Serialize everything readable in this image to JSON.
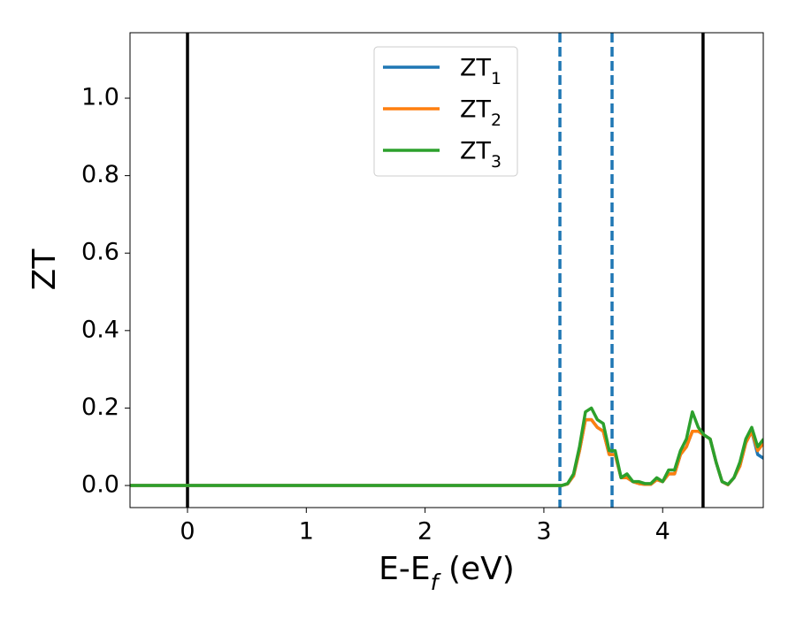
{
  "chart_data": {
    "type": "line",
    "xlabel": "E-E_f (eV)",
    "ylabel": "ZT",
    "x": [
      -0.48,
      3.0,
      3.1,
      3.15,
      3.2,
      3.25,
      3.3,
      3.35,
      3.4,
      3.45,
      3.5,
      3.55,
      3.6,
      3.65,
      3.7,
      3.75,
      3.8,
      3.85,
      3.9,
      3.95,
      4.0,
      4.05,
      4.1,
      4.15,
      4.2,
      4.25,
      4.3,
      4.35,
      4.4,
      4.45,
      4.5,
      4.55,
      4.6,
      4.65,
      4.7,
      4.75,
      4.8,
      4.85
    ],
    "series": [
      {
        "name": "ZT_1",
        "color": "#1f77b4",
        "values": [
          0,
          0,
          0,
          0,
          0.004,
          0.025,
          0.09,
          0.17,
          0.17,
          0.15,
          0.14,
          0.08,
          0.08,
          0.02,
          0.02,
          0.01,
          0.005,
          0.003,
          0.003,
          0.015,
          0.01,
          0.03,
          0.03,
          0.08,
          0.1,
          0.14,
          0.14,
          0.13,
          0.12,
          0.06,
          0.01,
          0.002,
          0.02,
          0.05,
          0.11,
          0.14,
          0.08,
          0.07
        ]
      },
      {
        "name": "ZT_2",
        "color": "#ff7f0e",
        "values": [
          0,
          0,
          0,
          0,
          0.004,
          0.025,
          0.09,
          0.17,
          0.17,
          0.15,
          0.14,
          0.08,
          0.08,
          0.02,
          0.02,
          0.01,
          0.005,
          0.003,
          0.003,
          0.015,
          0.01,
          0.03,
          0.03,
          0.08,
          0.1,
          0.14,
          0.14,
          0.13,
          0.12,
          0.06,
          0.01,
          0.002,
          0.02,
          0.05,
          0.11,
          0.14,
          0.09,
          0.11
        ]
      },
      {
        "name": "ZT_3",
        "color": "#2ca02c",
        "values": [
          0,
          0,
          0,
          0,
          0.005,
          0.03,
          0.1,
          0.19,
          0.2,
          0.17,
          0.16,
          0.09,
          0.09,
          0.02,
          0.03,
          0.01,
          0.01,
          0.005,
          0.005,
          0.02,
          0.01,
          0.04,
          0.04,
          0.09,
          0.12,
          0.19,
          0.15,
          0.13,
          0.12,
          0.06,
          0.01,
          0.003,
          0.02,
          0.06,
          0.12,
          0.15,
          0.1,
          0.12
        ]
      }
    ],
    "vlines": [
      {
        "x": 0,
        "color": "#000000",
        "style": "solid"
      },
      {
        "x": 4.34,
        "color": "#000000",
        "style": "solid"
      },
      {
        "x": 3.135,
        "color": "#1f77b4",
        "style": "dashed"
      },
      {
        "x": 3.574,
        "color": "#1f77b4",
        "style": "dashed"
      }
    ],
    "xlim": [
      -0.484,
      4.847
    ],
    "xticks": [
      0,
      1,
      2,
      3,
      4
    ],
    "ylim": [
      -0.057,
      1.169
    ],
    "yticks": [
      {
        "value": 0,
        "label": "0.0"
      },
      0.2,
      0.4,
      0.6,
      0.8,
      {
        "value": 1,
        "label": "1.0"
      }
    ],
    "legend": "upper center"
  }
}
